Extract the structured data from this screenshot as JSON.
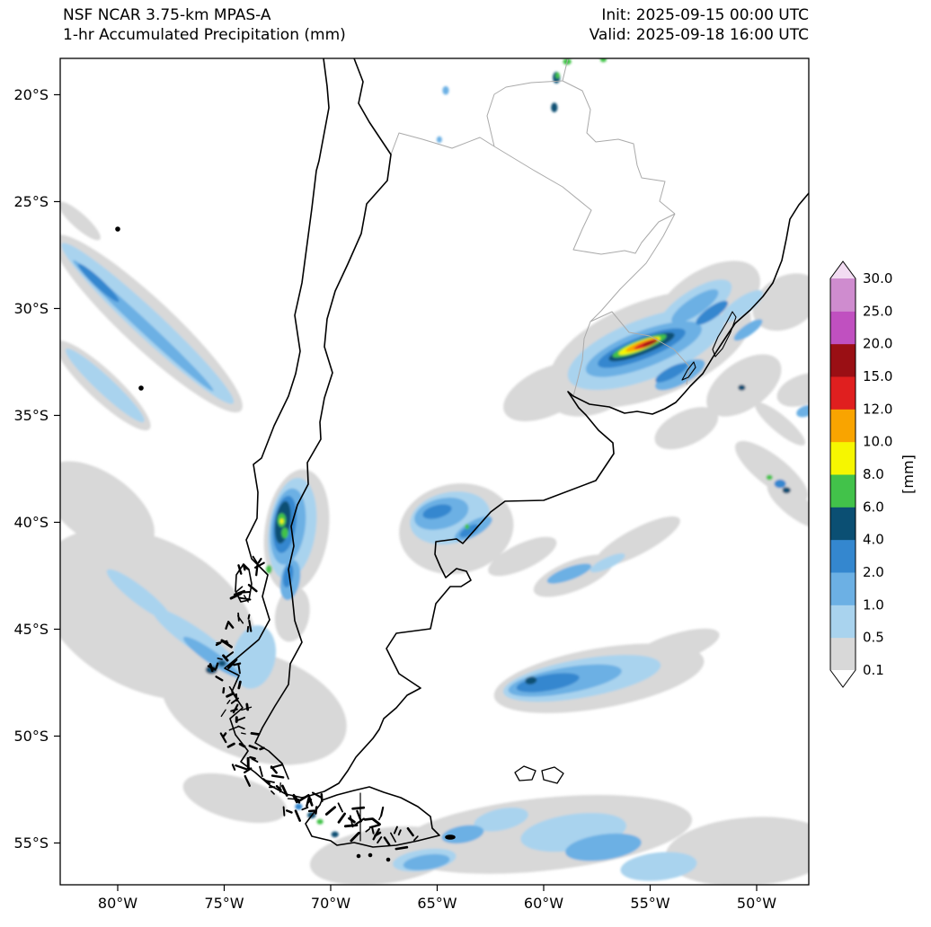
{
  "header": {
    "title_line1": "NSF NCAR 3.75-km MPAS-A",
    "title_line2": "1-hr Accumulated Precipitation (mm)",
    "init_label": "Init: 2025-09-15 00:00 UTC",
    "valid_label": "Valid: 2025-09-18 16:00 UTC"
  },
  "axes": {
    "lat_ticks": [
      "20°S",
      "25°S",
      "30°S",
      "35°S",
      "40°S",
      "45°S",
      "50°S",
      "55°S"
    ],
    "lat_values": [
      -20,
      -25,
      -30,
      -35,
      -40,
      -45,
      -50,
      -55
    ],
    "lon_ticks": [
      "80°W",
      "75°W",
      "70°W",
      "65°W",
      "60°W",
      "55°W",
      "50°W"
    ],
    "lon_values": [
      -80,
      -75,
      -70,
      -65,
      -60,
      -55,
      -50
    ]
  },
  "colorbar": {
    "unit": "[mm]",
    "levels": [
      0.1,
      0.5,
      1,
      2,
      4,
      6,
      8,
      10,
      12,
      15,
      20,
      25,
      30
    ],
    "labels": [
      "0.1",
      "0.5",
      "1.0",
      "2.0",
      "4.0",
      "6.0",
      "8.0",
      "10.0",
      "12.0",
      "15.0",
      "20.0",
      "25.0",
      "30.0"
    ],
    "colors": [
      "#d8d8d8",
      "#a9d3ee",
      "#6cb0e4",
      "#3487cf",
      "#0b4f73",
      "#42c24a",
      "#f6f600",
      "#f9a400",
      "#e01f1f",
      "#9a0f14",
      "#c050c0",
      "#cf8ccf"
    ],
    "under_color": "#ffffff",
    "over_color": "#f2dcf2"
  },
  "map_colors": {
    "coastline": "#000000",
    "border": "#aaaaaa",
    "background": "#ffffff"
  },
  "chart_data": {
    "type": "map",
    "region": "Southern South America (Argentina, Chile, Uruguay, Paraguay, S. Brazil)",
    "extent": {
      "lon_min": -82.7,
      "lon_max": -47.5,
      "lat_min": -57.0,
      "lat_max": -18.3
    },
    "feature_format": [
      "lon",
      "lat",
      "width_deg",
      "height_deg",
      "rotation_deg",
      "mm_level"
    ],
    "precip_features": [
      [
        -55.0,
        -31.9,
        10.0,
        4.5,
        -21,
        0.1
      ],
      [
        -52.3,
        -29.7,
        5.5,
        3.0,
        -32,
        0.1
      ],
      [
        -57.6,
        -33.6,
        4.5,
        2.6,
        -21,
        0.1
      ],
      [
        -50.6,
        -33.6,
        4.0,
        2.2,
        -35,
        0.1
      ],
      [
        -59.8,
        -33.9,
        4.5,
        2.2,
        -25,
        0.1
      ],
      [
        -48.6,
        -29.7,
        3.4,
        2.4,
        -30,
        0.1
      ],
      [
        -78.6,
        -30.7,
        12.0,
        2.3,
        43,
        0.1
      ],
      [
        -80.7,
        -33.6,
        6.0,
        1.4,
        43,
        0.1
      ],
      [
        -81.8,
        -25.9,
        2.6,
        0.7,
        42,
        0.1
      ],
      [
        -64.1,
        -40.3,
        5.4,
        4.2,
        -10,
        0.1
      ],
      [
        -61.0,
        -41.6,
        3.5,
        1.2,
        -25,
        0.1
      ],
      [
        -58.6,
        -42.5,
        4.0,
        1.4,
        -22,
        0.1
      ],
      [
        -55.6,
        -40.9,
        4.5,
        1.2,
        -28,
        0.1
      ],
      [
        -71.6,
        -40.4,
        3.0,
        5.8,
        8,
        0.1
      ],
      [
        -71.8,
        -44.3,
        1.6,
        2.6,
        10,
        0.1
      ],
      [
        -78.6,
        -44.3,
        11.0,
        7.0,
        28,
        0.1
      ],
      [
        -73.6,
        -48.6,
        9.0,
        5.0,
        18,
        0.1
      ],
      [
        -80.9,
        -39.3,
        6.0,
        3.2,
        35,
        0.1
      ],
      [
        -74.5,
        -52.9,
        5.0,
        2.0,
        15,
        0.1
      ],
      [
        -57.4,
        -47.3,
        10.0,
        2.8,
        -10,
        0.1
      ],
      [
        -53.9,
        -45.9,
        4.5,
        1.3,
        -18,
        0.1
      ],
      [
        -60.0,
        -54.6,
        14.0,
        3.4,
        -6,
        0.1
      ],
      [
        -50.3,
        -55.4,
        8.0,
        3.2,
        -4,
        0.1
      ],
      [
        -67.5,
        -55.6,
        7.0,
        2.6,
        -8,
        0.1
      ],
      [
        -49.3,
        -37.6,
        4.2,
        1.4,
        38,
        0.1
      ],
      [
        -48.2,
        -39.2,
        3.2,
        1.1,
        38,
        0.1
      ],
      [
        -48.9,
        -35.4,
        3.0,
        0.8,
        40,
        0.1
      ],
      [
        -47.8,
        -33.8,
        2.6,
        1.4,
        -20,
        0.1
      ],
      [
        -53.3,
        -35.6,
        3.2,
        1.6,
        -25,
        0.1
      ],
      [
        -55.2,
        -31.9,
        7.8,
        2.8,
        -21,
        0.5
      ],
      [
        -52.9,
        -29.9,
        4.0,
        1.5,
        -33,
        0.5
      ],
      [
        -50.7,
        -29.9,
        2.4,
        0.8,
        -35,
        0.5
      ],
      [
        -78.6,
        -30.7,
        11.0,
        1.3,
        43,
        0.5
      ],
      [
        -80.6,
        -33.6,
        5.0,
        0.8,
        43,
        0.5
      ],
      [
        -64.4,
        -39.8,
        3.8,
        2.4,
        -12,
        0.5
      ],
      [
        -71.8,
        -40.3,
        2.2,
        4.8,
        8,
        0.5
      ],
      [
        -73.6,
        -46.3,
        2.0,
        3.0,
        12,
        0.5
      ],
      [
        -76.3,
        -45.5,
        5.0,
        1.0,
        35,
        0.5
      ],
      [
        -79.0,
        -43.4,
        3.8,
        0.8,
        38,
        0.5
      ],
      [
        -58.2,
        -47.3,
        7.5,
        1.8,
        -10,
        0.5
      ],
      [
        -58.6,
        -54.5,
        5.0,
        1.7,
        -8,
        0.5
      ],
      [
        -54.6,
        -56.1,
        3.6,
        1.3,
        -6,
        0.5
      ],
      [
        -62.0,
        -53.9,
        2.6,
        1.0,
        -12,
        0.5
      ],
      [
        -65.6,
        -55.8,
        3.0,
        1.0,
        -8,
        0.5
      ],
      [
        -57.0,
        -41.9,
        1.8,
        0.5,
        -25,
        0.5
      ],
      [
        -55.3,
        -31.9,
        5.8,
        1.7,
        -21,
        1
      ],
      [
        -53.6,
        -33.1,
        2.6,
        0.9,
        -28,
        1
      ],
      [
        -52.9,
        -29.9,
        2.6,
        0.8,
        -34,
        1
      ],
      [
        -50.4,
        -31.0,
        1.6,
        0.5,
        -35,
        1
      ],
      [
        -78.8,
        -30.8,
        9.0,
        0.55,
        43,
        1
      ],
      [
        -72.0,
        -40.2,
        1.6,
        3.6,
        8,
        1
      ],
      [
        -71.9,
        -42.7,
        0.9,
        1.9,
        10,
        1
      ],
      [
        -64.8,
        -39.6,
        2.6,
        1.4,
        -15,
        1
      ],
      [
        -63.3,
        -40.3,
        2.0,
        0.7,
        -30,
        1
      ],
      [
        -75.6,
        -46.3,
        3.2,
        0.6,
        35,
        1
      ],
      [
        -59.0,
        -47.4,
        5.4,
        1.2,
        -10,
        1
      ],
      [
        -57.2,
        -55.2,
        3.6,
        1.2,
        -8,
        1
      ],
      [
        -63.8,
        -54.6,
        2.0,
        0.8,
        -10,
        1
      ],
      [
        -65.5,
        -55.9,
        2.2,
        0.7,
        -8,
        1
      ],
      [
        -47.7,
        -34.8,
        0.9,
        0.5,
        -20,
        1
      ],
      [
        -58.8,
        -42.4,
        2.2,
        0.6,
        -20,
        1
      ],
      [
        -64.6,
        -19.8,
        0.3,
        0.4,
        0,
        1
      ],
      [
        -64.9,
        -22.1,
        0.25,
        0.3,
        0,
        1
      ],
      [
        -55.4,
        -31.85,
        4.4,
        1.05,
        -21,
        2
      ],
      [
        -54.0,
        -33.0,
        1.7,
        0.5,
        -28,
        2
      ],
      [
        -52.1,
        -30.2,
        1.8,
        0.55,
        -35,
        2
      ],
      [
        -80.9,
        -28.8,
        2.6,
        0.4,
        43,
        2
      ],
      [
        -72.15,
        -40.1,
        1.05,
        2.7,
        8,
        2
      ],
      [
        -72.0,
        -42.5,
        0.45,
        1.1,
        10,
        2
      ],
      [
        -65.0,
        -39.5,
        1.4,
        0.6,
        -15,
        2
      ],
      [
        -63.5,
        -40.4,
        1.0,
        0.4,
        -30,
        2
      ],
      [
        -59.8,
        -47.5,
        3.0,
        0.75,
        -10,
        2
      ],
      [
        -48.9,
        -38.2,
        0.55,
        0.4,
        0,
        2
      ],
      [
        -71.5,
        -53.3,
        0.35,
        0.3,
        0,
        2
      ],
      [
        -55.4,
        -31.8,
        3.3,
        0.7,
        -21,
        4
      ],
      [
        -72.25,
        -40.0,
        0.7,
        2.0,
        8,
        4
      ],
      [
        -60.6,
        -47.4,
        0.55,
        0.35,
        -10,
        4
      ],
      [
        -75.6,
        -46.9,
        0.55,
        0.4,
        0,
        4
      ],
      [
        -75.1,
        -46.6,
        0.4,
        0.3,
        0,
        4
      ],
      [
        -59.4,
        -19.2,
        0.35,
        0.55,
        0,
        4
      ],
      [
        -59.5,
        -20.6,
        0.3,
        0.45,
        0,
        4
      ],
      [
        -70.9,
        -53.7,
        0.4,
        0.3,
        0,
        4
      ],
      [
        -69.8,
        -54.6,
        0.35,
        0.28,
        0,
        4
      ],
      [
        -48.6,
        -38.5,
        0.4,
        0.3,
        0,
        4
      ],
      [
        -50.7,
        -33.7,
        0.35,
        0.28,
        0,
        4
      ],
      [
        -55.5,
        -31.75,
        2.7,
        0.52,
        -21,
        6
      ],
      [
        -72.3,
        -39.9,
        0.4,
        0.65,
        0,
        6
      ],
      [
        -72.15,
        -40.5,
        0.32,
        0.5,
        0,
        6
      ],
      [
        -72.9,
        -42.2,
        0.28,
        0.4,
        0,
        6
      ],
      [
        -58.9,
        -18.45,
        0.4,
        0.3,
        0,
        6
      ],
      [
        -59.35,
        -19.1,
        0.2,
        0.3,
        0,
        6
      ],
      [
        -70.5,
        -54.0,
        0.3,
        0.25,
        0,
        6
      ],
      [
        -49.4,
        -37.9,
        0.3,
        0.25,
        0,
        6
      ],
      [
        -63.6,
        -40.2,
        0.2,
        0.25,
        0,
        6
      ],
      [
        -57.2,
        -18.35,
        0.3,
        0.25,
        0,
        6
      ],
      [
        -55.5,
        -31.75,
        2.1,
        0.4,
        -21,
        8
      ],
      [
        -72.3,
        -39.95,
        0.18,
        0.25,
        0,
        8
      ],
      [
        -55.4,
        -31.7,
        1.6,
        0.3,
        -21,
        10
      ],
      [
        -55.2,
        -31.68,
        1.2,
        0.24,
        -21,
        12
      ],
      [
        -55.0,
        -31.62,
        0.75,
        0.17,
        -21,
        15
      ]
    ]
  }
}
